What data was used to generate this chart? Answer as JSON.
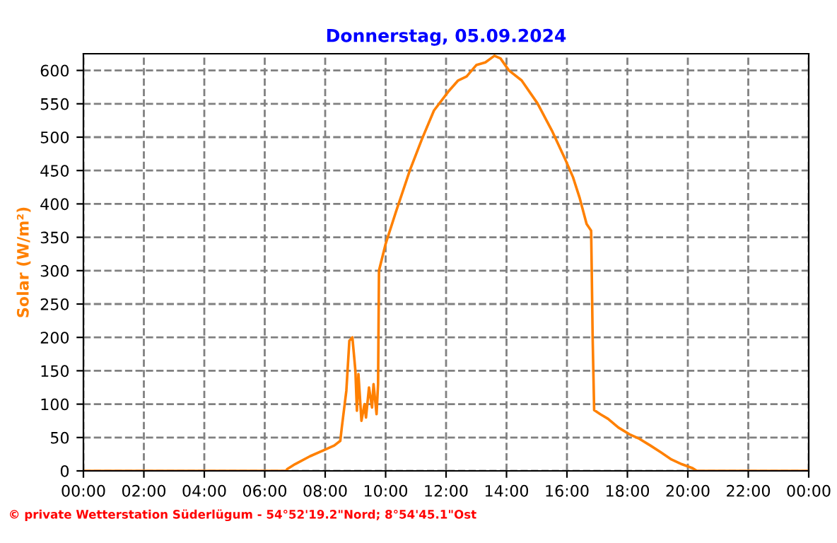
{
  "chart_data": {
    "type": "line",
    "title": "Donnerstag, 05.09.2024",
    "ylabel": "Solar (W/m²)",
    "x": [
      0,
      6.7,
      6.75,
      7.0,
      7.5,
      8.0,
      8.3,
      8.5,
      8.55,
      8.7,
      8.8,
      8.9,
      9.0,
      9.05,
      9.1,
      9.2,
      9.3,
      9.35,
      9.45,
      9.55,
      9.6,
      9.7,
      9.75,
      9.78,
      10.0,
      10.34,
      10.8,
      11.2,
      11.6,
      12.07,
      12.4,
      12.68,
      13.0,
      13.3,
      13.6,
      13.8,
      14.08,
      14.5,
      15.02,
      15.5,
      15.95,
      16.2,
      16.42,
      16.65,
      16.8,
      16.82,
      16.85,
      16.9,
      17.1,
      17.36,
      17.7,
      18.06,
      18.4,
      18.76,
      19.1,
      19.46,
      19.8,
      20.16,
      20.3,
      24
    ],
    "series": [
      {
        "color": "#ff8000",
        "values": [
          0,
          0,
          3,
          10,
          22,
          32,
          38,
          45,
          65,
          120,
          195,
          200,
          150,
          90,
          145,
          75,
          100,
          80,
          125,
          95,
          130,
          85,
          130,
          300,
          340,
          388,
          450,
          497,
          540,
          568,
          585,
          591,
          608,
          612,
          622,
          618,
          600,
          585,
          551,
          510,
          466,
          440,
          409,
          370,
          360,
          300,
          200,
          91,
          85,
          78,
          65,
          55,
          48,
          38,
          28,
          17,
          10,
          4,
          0,
          0
        ]
      }
    ],
    "xlim": [
      0,
      24
    ],
    "xticks": [
      {
        "value": 0,
        "label": "00:00"
      },
      {
        "value": 2,
        "label": "02:00"
      },
      {
        "value": 4,
        "label": "04:00"
      },
      {
        "value": 6,
        "label": "06:00"
      },
      {
        "value": 8,
        "label": "08:00"
      },
      {
        "value": 10,
        "label": "10:00"
      },
      {
        "value": 12,
        "label": "12:00"
      },
      {
        "value": 14,
        "label": "14:00"
      },
      {
        "value": 16,
        "label": "16:00"
      },
      {
        "value": 18,
        "label": "18:00"
      },
      {
        "value": 20,
        "label": "20:00"
      },
      {
        "value": 22,
        "label": "22:00"
      },
      {
        "value": 24,
        "label": "00:00"
      }
    ],
    "ylim": [
      0,
      625
    ],
    "yticks": [
      0,
      50,
      100,
      150,
      200,
      250,
      300,
      350,
      400,
      450,
      500,
      550,
      600
    ],
    "grid": true,
    "line_style": "solid",
    "marker": "none",
    "annotations": [
      "© private Wetterstation Süderlügum - 54°52'19.2\"Nord; 8°54'45.1\"Ost"
    ]
  }
}
